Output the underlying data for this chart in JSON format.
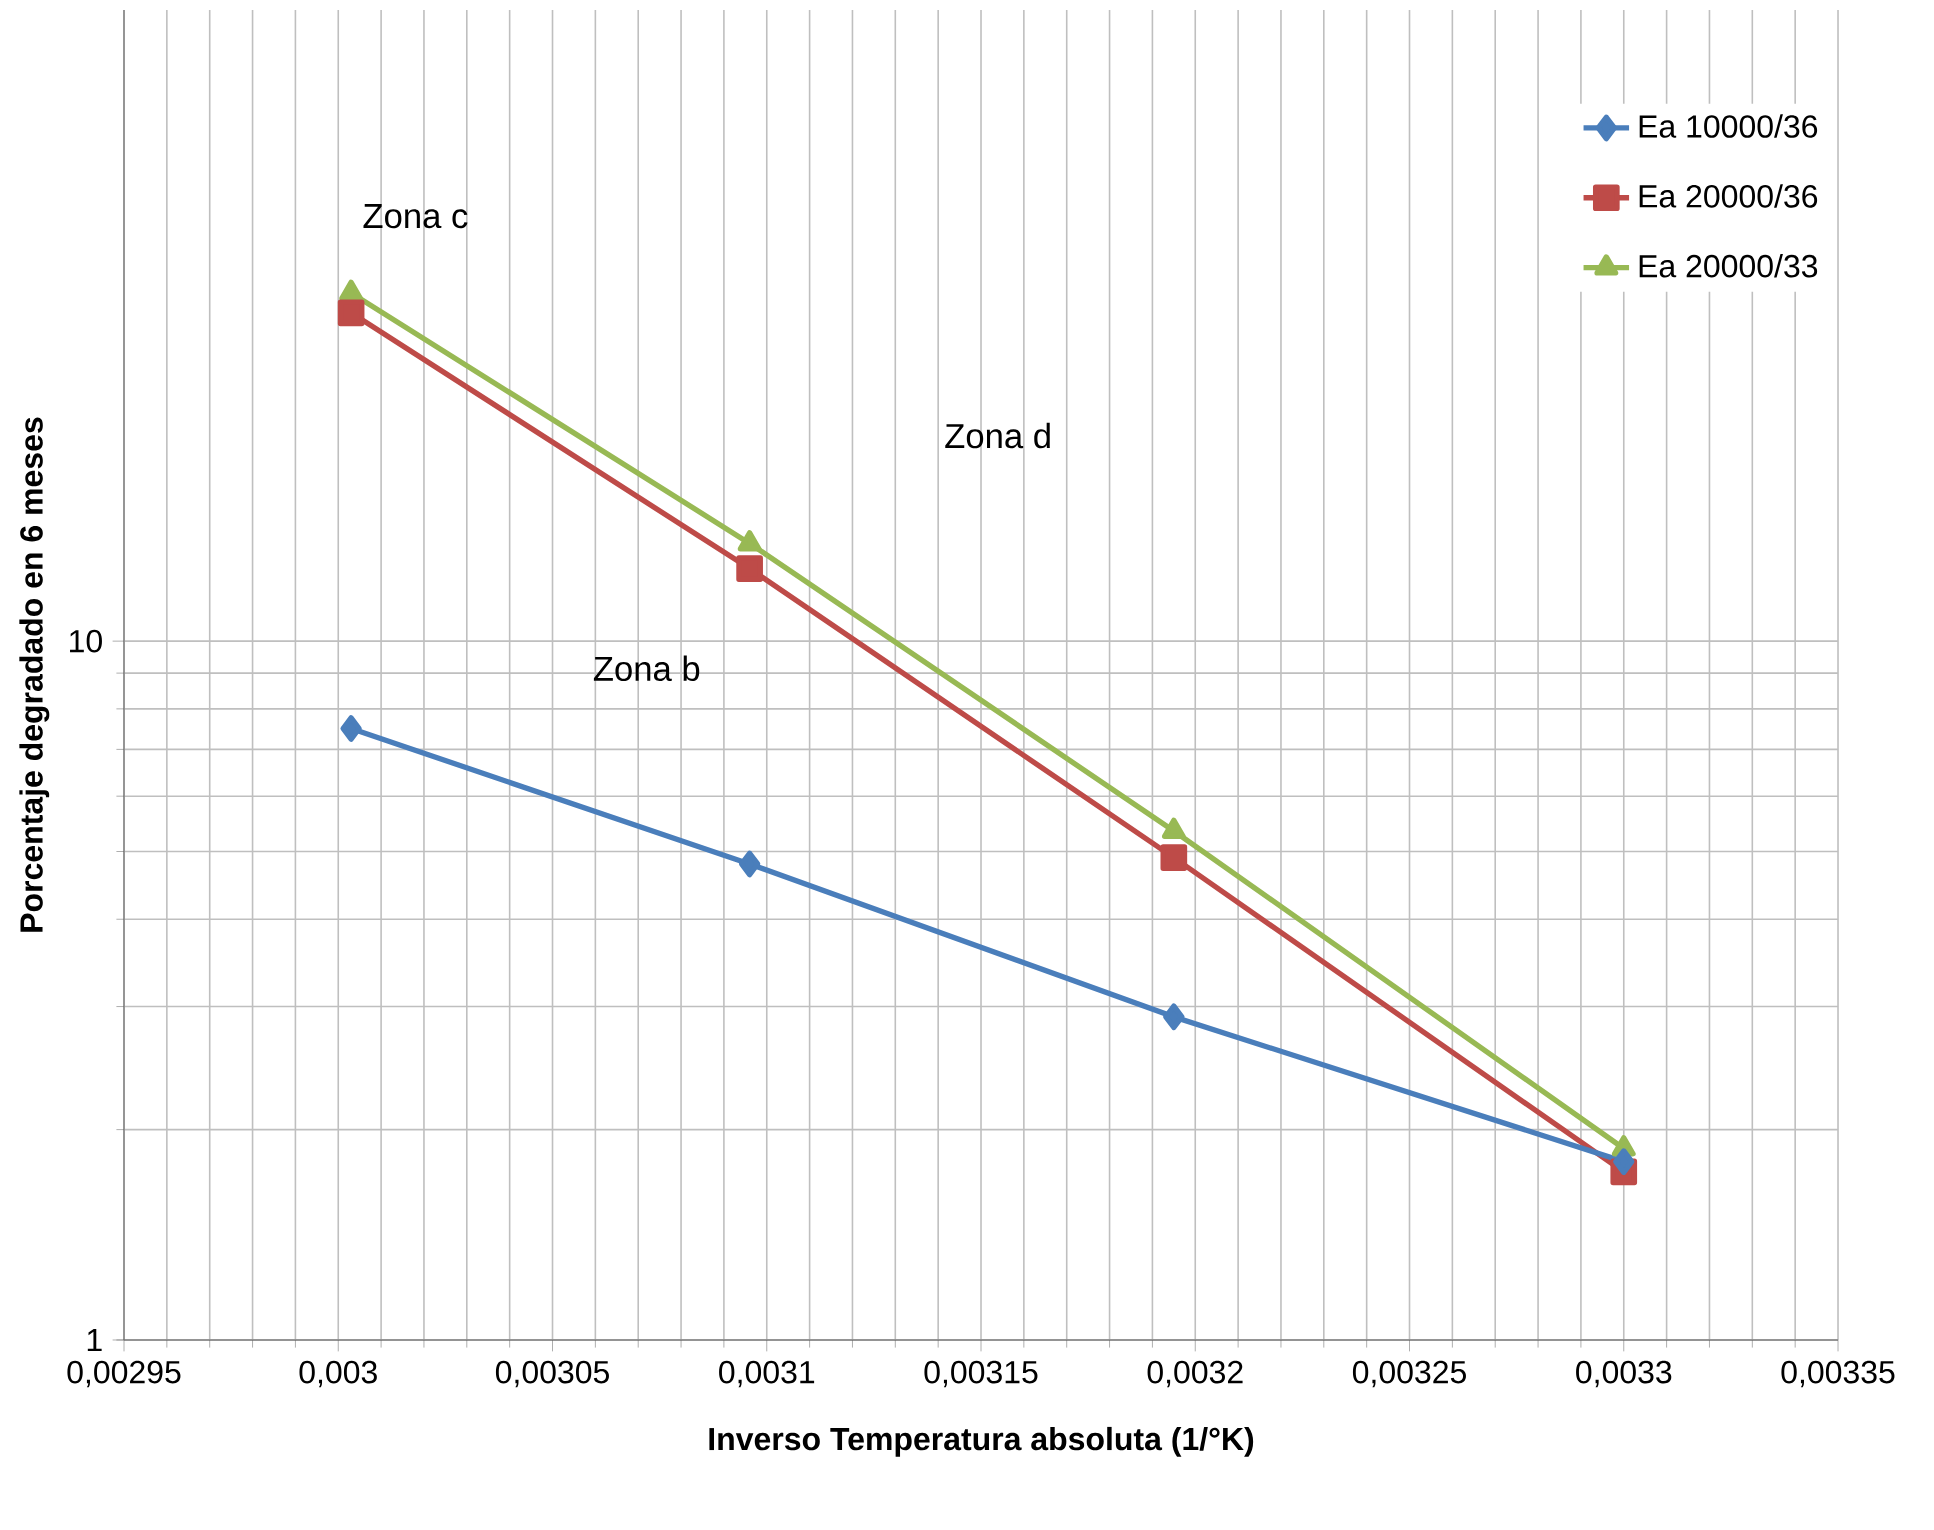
{
  "chart_data": {
    "type": "line",
    "xlabel": "Inverso Temperatura absoluta (1/°K)",
    "ylabel": "Porcentaje degradado en 6 meses",
    "log": "y",
    "grid": true,
    "legend": "top right",
    "line_style": "solid",
    "xlim": [
      0.00295,
      0.00335
    ],
    "ylim": [
      1,
      80
    ],
    "xticks": [
      {
        "value": 0.00295,
        "label": "0,00295"
      },
      {
        "value": 0.003,
        "label": "0,003"
      },
      {
        "value": 0.00305,
        "label": "0,00305"
      },
      {
        "value": 0.0031,
        "label": "0,0031"
      },
      {
        "value": 0.00315,
        "label": "0,00315"
      },
      {
        "value": 0.0032,
        "label": "0,0032"
      },
      {
        "value": 0.00325,
        "label": "0,00325"
      },
      {
        "value": 0.0033,
        "label": "0,0033"
      },
      {
        "value": 0.00335,
        "label": "0,00335"
      }
    ],
    "yticks": [
      1,
      10
    ],
    "series": [
      {
        "name": "Ea 10000/36",
        "color": "#4a7ebb",
        "marker": "diamond",
        "x": [
          0.003003,
          0.003096,
          0.003195,
          0.0033
        ],
        "values": [
          7.5,
          4.8,
          2.9,
          1.8
        ]
      },
      {
        "name": "Ea 20000/36",
        "color": "#be4b48",
        "marker": "square",
        "x": [
          0.003003,
          0.003096,
          0.003195,
          0.0033
        ],
        "values": [
          29.5,
          12.7,
          4.9,
          1.74
        ]
      },
      {
        "name": "Ea 20000/33",
        "color": "#98b954",
        "marker": "triangle",
        "x": [
          0.003003,
          0.003096,
          0.003195,
          0.0033
        ],
        "values": [
          31.5,
          13.8,
          5.35,
          1.88
        ]
      }
    ],
    "annotations": [
      "Zona c",
      "Zona d",
      "Zona b"
    ]
  }
}
